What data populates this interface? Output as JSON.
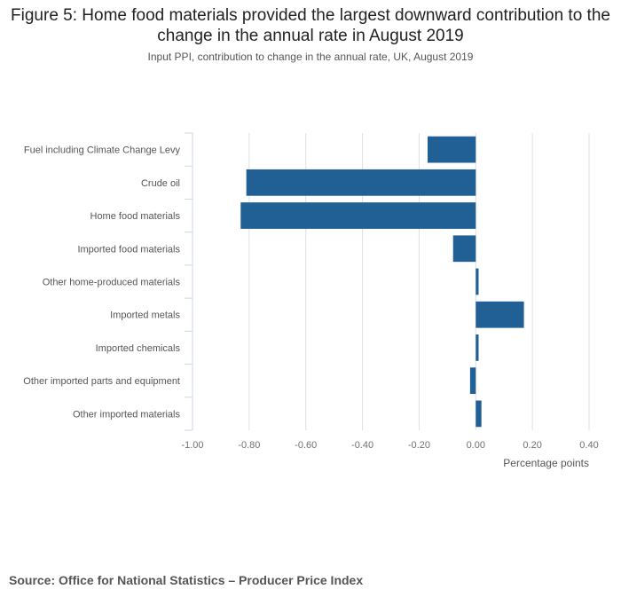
{
  "title": "Figure 5: Home food materials provided the largest downward contribution to the change in the annual rate in August 2019",
  "subtitle": "Input PPI, contribution to change in the annual rate, UK, August 2019",
  "source": "Source: Office for National Statistics – Producer Price Index",
  "chart_data": {
    "type": "bar",
    "orientation": "horizontal",
    "title": "Figure 5: Home food materials provided the largest downward contribution to the change in the annual rate in August 2019",
    "subtitle": "Input PPI, contribution to change in the annual rate, UK, August 2019",
    "xlabel": "Percentage points",
    "ylabel": "",
    "xlim": [
      -1.0,
      0.4
    ],
    "x_ticks": [
      "-1.00",
      "-0.80",
      "-0.60",
      "-0.40",
      "-0.20",
      "0.00",
      "0.20",
      "0.40"
    ],
    "grid": true,
    "bar_color": "#206095",
    "categories": [
      "Fuel including Climate Change Levy",
      "Crude oil",
      "Home food materials",
      "Imported food materials",
      "Other home-produced materials",
      "Imported metals",
      "Imported chemicals",
      "Other imported parts and equipment",
      "Other imported materials"
    ],
    "values": [
      -0.17,
      -0.81,
      -0.83,
      -0.08,
      0.01,
      0.17,
      0.01,
      -0.02,
      0.02
    ]
  }
}
